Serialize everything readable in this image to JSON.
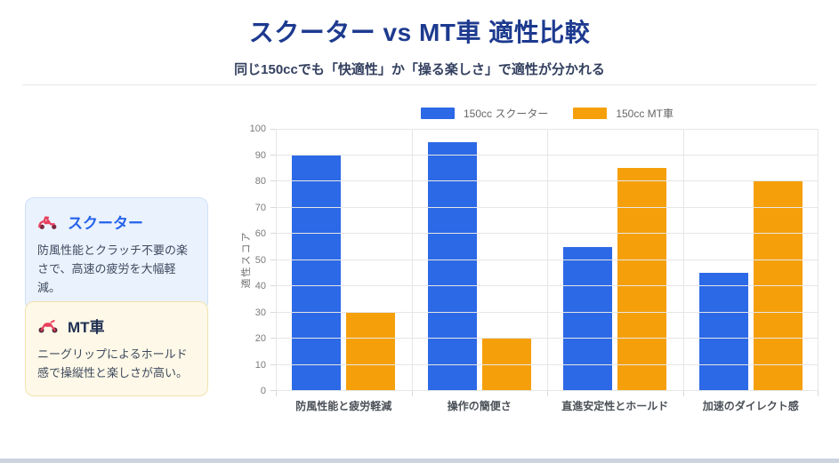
{
  "page": {
    "title": "スクーター vs MT車 適性比較",
    "subtitle": "同じ150ccでも「快適性」か「操る楽しさ」で適性が分かれる"
  },
  "cards": [
    {
      "icon": "scooter-icon",
      "title": "スクーター",
      "body": "防風性能とクラッチ不要の楽さで、高速の疲労を大幅軽減。"
    },
    {
      "icon": "motorcycle-icon",
      "title": "MT車",
      "body": "ニーグリップによるホールド感で操縦性と楽しさが高い。"
    }
  ],
  "chart_data": {
    "type": "bar",
    "categories": [
      "防風性能と疲労軽減",
      "操作の簡便さ",
      "直進安定性とホールド",
      "加速のダイレクト感"
    ],
    "series": [
      {
        "name": "150cc スクーター",
        "color": "#2c69e6",
        "values": [
          90,
          95,
          55,
          45
        ]
      },
      {
        "name": "150cc MT車",
        "color": "#f5a00b",
        "values": [
          30,
          20,
          85,
          80
        ]
      }
    ],
    "ylabel": "適性スコア",
    "ylim": [
      0,
      100
    ],
    "ytick_step": 10,
    "grid": true,
    "legend_position": "top"
  },
  "colors": {
    "title": "#1d3a8f",
    "subtitle": "#333f5f",
    "scooter_accent": "#2563eb",
    "mt_accent": "#1e2f52",
    "gridline": "#e6e6e6",
    "bottom_strip": "#ccd4e0"
  }
}
